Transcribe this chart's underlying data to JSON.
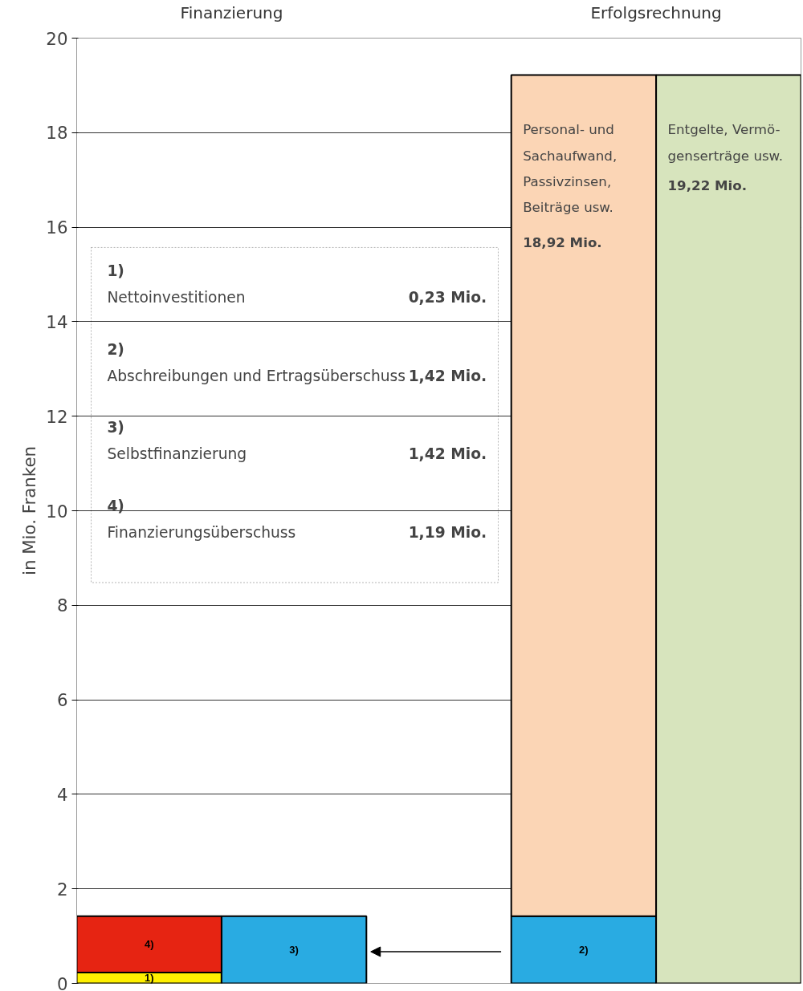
{
  "chart_data": {
    "type": "bar",
    "stacked": true,
    "categories": [
      null,
      null,
      null,
      null,
      null
    ],
    "series": [
      {
        "name": "1)",
        "color": "#fff000",
        "values": [
          0.23,
          null,
          null,
          null,
          null
        ]
      },
      {
        "name": "3)",
        "color": "#29abe2",
        "values": [
          null,
          1.42,
          null,
          null,
          null
        ]
      },
      {
        "name": "2)",
        "color": "#29abe2",
        "values": [
          null,
          null,
          null,
          1.42,
          null
        ]
      },
      {
        "name": "4)",
        "color": "#e62412",
        "values": [
          1.19,
          null,
          null,
          null,
          null
        ]
      },
      {
        "color": "#fbd5b5",
        "values": [
          null,
          null,
          null,
          17.8,
          null
        ]
      },
      {
        "color": "#d7e4bd",
        "values": [
          null,
          null,
          null,
          null,
          19.22
        ]
      }
    ],
    "ylim": [
      0,
      20
    ],
    "yticks": [
      0,
      2,
      4,
      6,
      8,
      10,
      12,
      14,
      16,
      18,
      20
    ],
    "ylabel": "in Mio. Franken",
    "grid": "y",
    "tick_labels": "y",
    "annotations": [
      "Finanzierung",
      "Erfolgsrechnung",
      "1)",
      "Nettoinvestitionen",
      "0,23 Mio.",
      "2)",
      "Abschreibungen und Ertragsüberschuss",
      "1,42 Mio.",
      "3)",
      "Selbstfinanzierung",
      "1,42 Mio.",
      "4)",
      "Finanzierungsüberschuss",
      "1,19 Mio.",
      "Personal- und\nSachaufwand,\nPassivzinsen,\nBeiträge usw.",
      "18,92 Mio.",
      "Entgelte, Vermö-\ngenserträge usw.",
      "19,22 Mio."
    ]
  }
}
